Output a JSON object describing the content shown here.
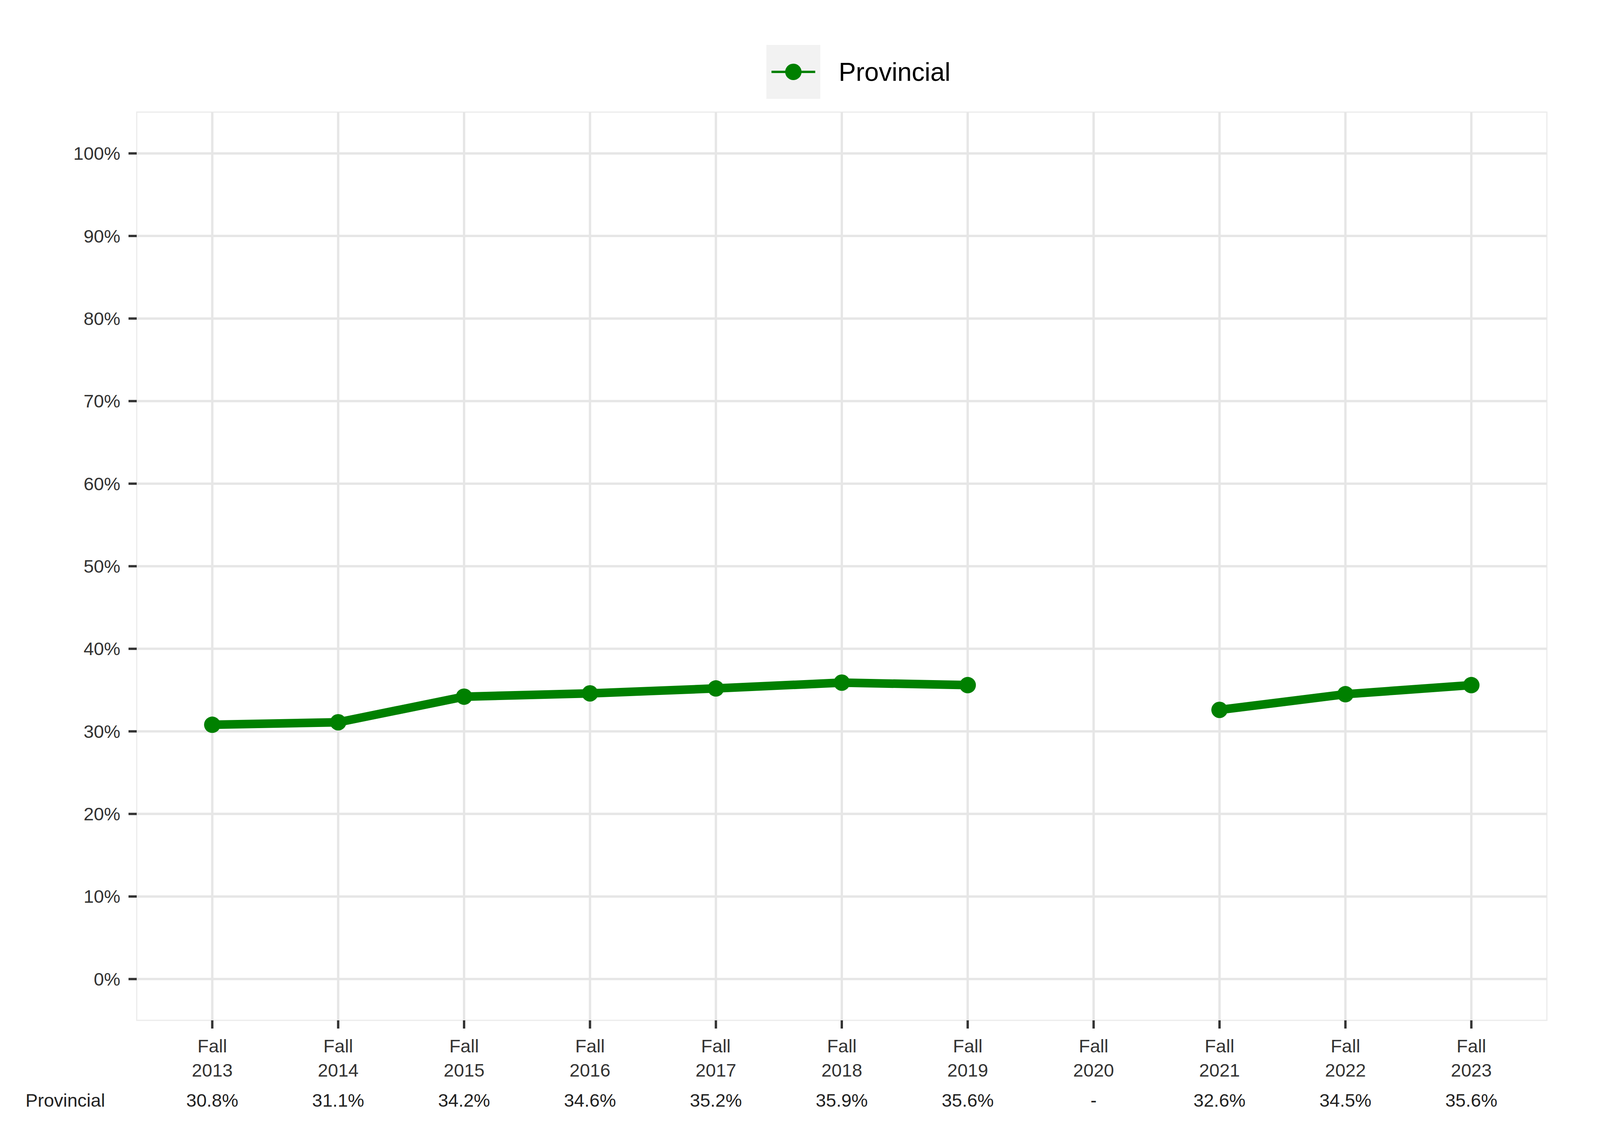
{
  "chart_data": {
    "type": "line",
    "categories": [
      "Fall 2013",
      "Fall 2014",
      "Fall 2015",
      "Fall 2016",
      "Fall 2017",
      "Fall 2018",
      "Fall 2019",
      "Fall 2020",
      "Fall 2021",
      "Fall 2022",
      "Fall 2023"
    ],
    "series": [
      {
        "name": "Provincial",
        "color": "#008000",
        "marker": "circle",
        "line_style": "solid",
        "values": [
          30.8,
          31.1,
          34.2,
          34.6,
          35.2,
          35.9,
          35.6,
          null,
          32.6,
          34.5,
          35.6
        ],
        "value_labels": [
          "30.8%",
          "31.1%",
          "34.2%",
          "34.6%",
          "35.2%",
          "35.9%",
          "35.6%",
          "-",
          "32.6%",
          "34.5%",
          "35.6%"
        ]
      }
    ],
    "ylim": [
      -5,
      105
    ],
    "yticks": [
      {
        "value": 0,
        "label": "0%"
      },
      {
        "value": 10,
        "label": "10%"
      },
      {
        "value": 20,
        "label": "20%"
      },
      {
        "value": 30,
        "label": "30%"
      },
      {
        "value": 40,
        "label": "40%"
      },
      {
        "value": 50,
        "label": "50%"
      },
      {
        "value": 60,
        "label": "60%"
      },
      {
        "value": 70,
        "label": "70%"
      },
      {
        "value": 80,
        "label": "80%"
      },
      {
        "value": 90,
        "label": "90%"
      },
      {
        "value": 100,
        "label": "100%"
      }
    ],
    "grid": true,
    "legend": "top"
  }
}
